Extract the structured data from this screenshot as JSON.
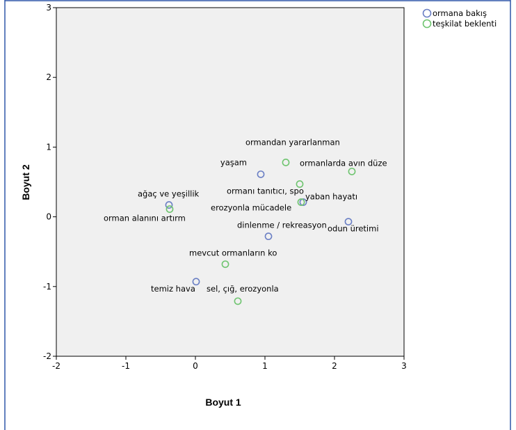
{
  "chart_data": {
    "type": "scatter",
    "title": "",
    "xlabel": "Boyut 1",
    "ylabel": "Boyut 2",
    "xlim": [
      -2,
      3
    ],
    "ylim": [
      -2,
      3
    ],
    "x_ticks": [
      "-2",
      "-1",
      "0",
      "1",
      "2",
      "3"
    ],
    "y_ticks": [
      "-2",
      "-1",
      "0",
      "1",
      "2",
      "3"
    ],
    "grid": false,
    "legend_position": "top-right",
    "series": [
      {
        "name": "ormana bakış",
        "color": "#6a7fc4",
        "points": [
          {
            "label": "yaşam",
            "x": 0.94,
            "y": 0.61
          },
          {
            "label": "yaban hayatı",
            "x": 1.55,
            "y": 0.21
          },
          {
            "label": "ağaç ve yeşillik",
            "x": -0.38,
            "y": 0.17
          },
          {
            "label": "odun üretimi",
            "x": 2.2,
            "y": -0.07
          },
          {
            "label": "dinlenme / rekreasyon",
            "x": 1.05,
            "y": -0.28
          },
          {
            "label": "temiz hava",
            "x": 0.01,
            "y": -0.93
          }
        ]
      },
      {
        "name": "teşkilat beklenti",
        "color": "#6ec46f",
        "points": [
          {
            "label": "ormandan yararlanman",
            "x": 1.3,
            "y": 0.78
          },
          {
            "label": "ormanlarda avın düze",
            "x": 2.25,
            "y": 0.65
          },
          {
            "label": "ormanı tanıtıcı, spo",
            "x": 1.5,
            "y": 0.47
          },
          {
            "label": "erozyonla mücadele",
            "x": 1.52,
            "y": 0.21
          },
          {
            "label": "orman alanını artırm",
            "x": -0.37,
            "y": 0.11
          },
          {
            "label": "mevcut ormanların ko",
            "x": 0.43,
            "y": -0.68
          },
          {
            "label": "sel, çığ, erozyonla",
            "x": 0.61,
            "y": -1.21
          }
        ]
      }
    ]
  }
}
